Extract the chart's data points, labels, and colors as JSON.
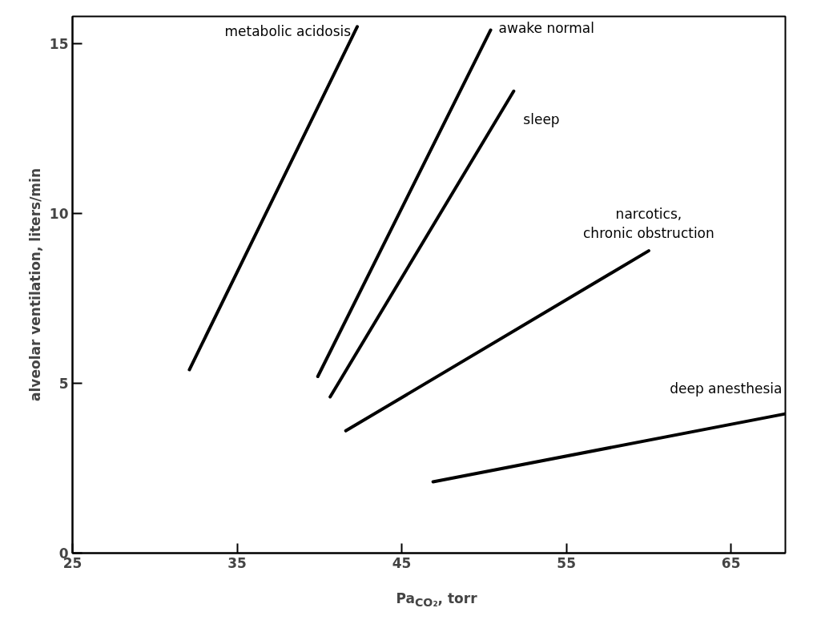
{
  "chart_data": {
    "type": "line",
    "xlabel": "Pa$_{CO₂}$, torr",
    "ylabel": "alveolar ventilation, liters/min",
    "xlim": [
      25,
      68.3
    ],
    "ylim": [
      0,
      15.8
    ],
    "xticks": [
      25,
      35,
      45,
      55,
      65
    ],
    "yticks": [
      0,
      5,
      10,
      15
    ],
    "grid": false,
    "legend": false,
    "line_style": "solid",
    "series": [
      {
        "name": "metabolic acidosis",
        "color": "#000000",
        "x": [
          32.1,
          42.3
        ],
        "values": [
          5.4,
          15.5
        ]
      },
      {
        "name": "awake normal",
        "color": "#000000",
        "x": [
          39.9,
          50.4
        ],
        "values": [
          5.2,
          15.4
        ]
      },
      {
        "name": "sleep",
        "color": "#000000",
        "x": [
          40.65,
          51.8
        ],
        "values": [
          4.6,
          13.6
        ]
      },
      {
        "name": "narcotics, chronic obstruction",
        "color": "#000000",
        "x": [
          41.6,
          60.0
        ],
        "values": [
          3.6,
          8.9
        ]
      },
      {
        "name": "deep anesthesia",
        "color": "#000000",
        "x": [
          46.9,
          68.3
        ],
        "values": [
          2.1,
          4.1
        ]
      }
    ]
  }
}
